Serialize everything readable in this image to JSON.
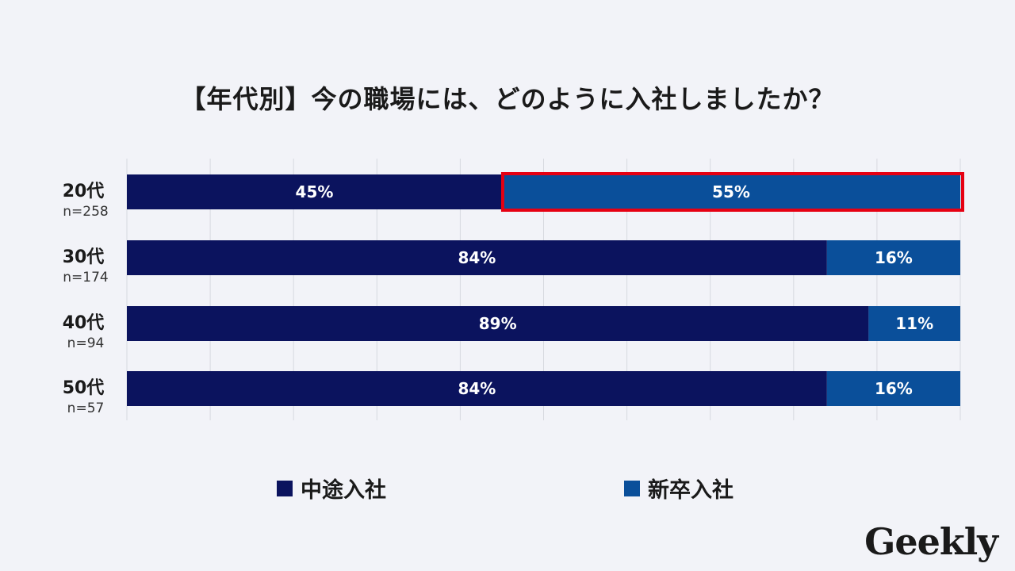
{
  "title": "【年代別】今の職場には、どのように入社しましたか？",
  "logo_text": "Geekly",
  "colors": {
    "series1": "#0b135e",
    "series2": "#0a4f9a",
    "highlight": "#e60012",
    "grid": "#d7d9e0",
    "background": "#f2f3f8"
  },
  "chart_data": {
    "type": "bar",
    "orientation": "horizontal-stacked-100",
    "categories": [
      "20代",
      "30代",
      "40代",
      "50代"
    ],
    "sample_sizes": [
      "n=258",
      "n=174",
      "n=94",
      "n=57"
    ],
    "series": [
      {
        "name": "中途入社",
        "values": [
          45,
          84,
          89,
          84
        ],
        "labels": [
          "45%",
          "84%",
          "89%",
          "84%"
        ]
      },
      {
        "name": "新卒入社",
        "values": [
          55,
          16,
          11,
          16
        ],
        "labels": [
          "55%",
          "16%",
          "11%",
          "16%"
        ]
      }
    ],
    "xlim": [
      0,
      100
    ],
    "grid": true,
    "legend_position": "bottom",
    "highlight": {
      "category_index": 0,
      "series_index": 1
    }
  }
}
